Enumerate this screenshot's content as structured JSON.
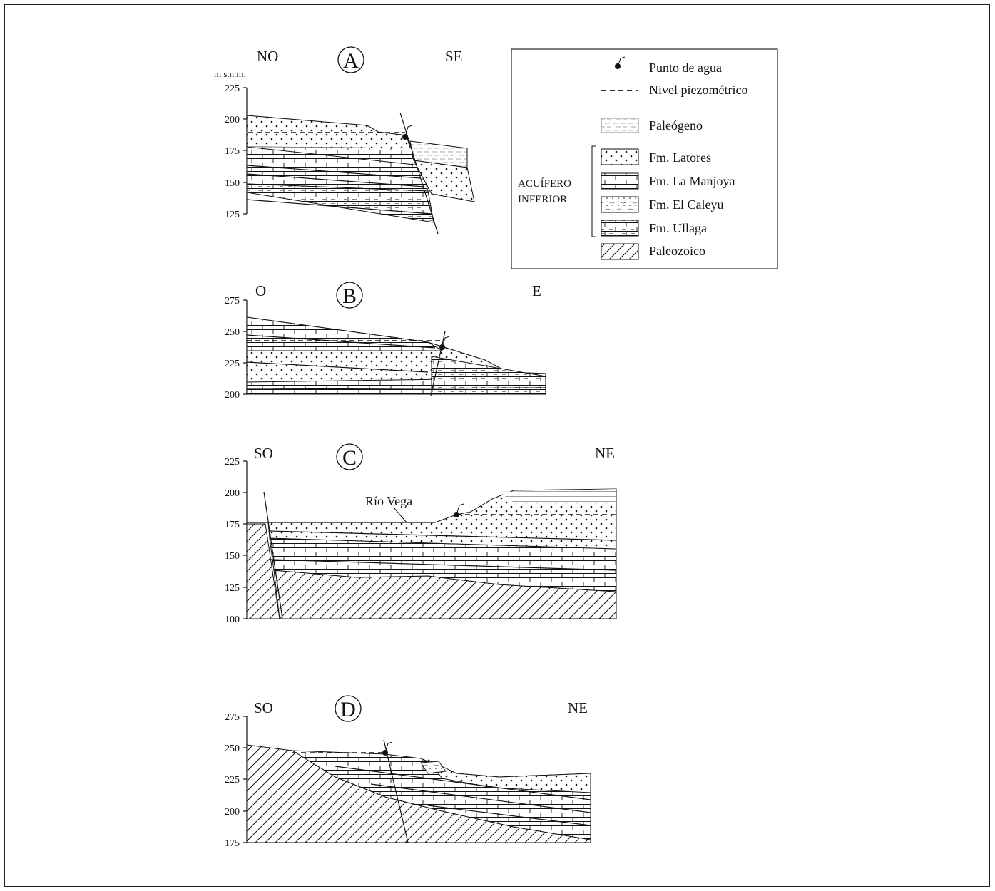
{
  "unit_label": "m s.n.m.",
  "sections": [
    {
      "id": "A",
      "left": "NO",
      "right": "SE",
      "ticks": [
        "225",
        "200",
        "175",
        "150",
        "125"
      ]
    },
    {
      "id": "B",
      "left": "O",
      "right": "E",
      "ticks": [
        "275",
        "250",
        "225",
        "200"
      ]
    },
    {
      "id": "C",
      "left": "SO",
      "right": "NE",
      "ticks": [
        "225",
        "200",
        "175",
        "150",
        "125",
        "100"
      ],
      "annotation": "Río Vega"
    },
    {
      "id": "D",
      "left": "SO",
      "right": "NE",
      "ticks": [
        "275",
        "250",
        "225",
        "200",
        "175"
      ]
    }
  ],
  "legend": {
    "items": [
      {
        "label": "Punto de agua",
        "symbol": "water-point"
      },
      {
        "label": "Nivel piezométrico",
        "symbol": "dashed-line"
      },
      {
        "label": "Paleógeno",
        "symbol": "paleogene-pattern"
      },
      {
        "label": "Fm. Latores",
        "symbol": "dots-pattern"
      },
      {
        "label": "Fm. La Manjoya",
        "symbol": "brick-pattern"
      },
      {
        "label": "Fm. El Caleyu",
        "symbol": "sandy-pattern"
      },
      {
        "label": "Fm. Ullaga",
        "symbol": "brick-dash-pattern"
      },
      {
        "label": "Paleozoico",
        "symbol": "hatch-pattern"
      }
    ],
    "aquifer_line1": "ACUÍFERO",
    "aquifer_line2": "INFERIOR"
  }
}
